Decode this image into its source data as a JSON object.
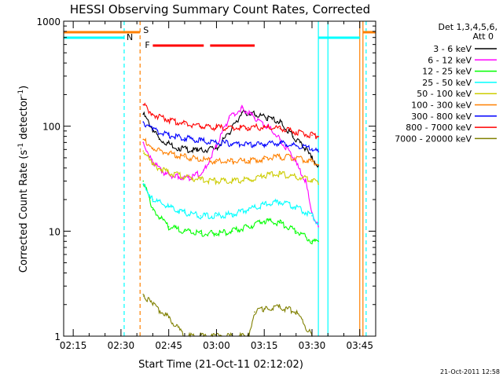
{
  "chart_data": {
    "type": "line",
    "title": "HESSI Observing Summary Count Rates, Corrected",
    "xlabel": "Start Time (21-Oct-11 02:12:02)",
    "ylabel": "Corrected Count Rate (s",
    "ylabel_sup1": "-1",
    "ylabel_mid": " detector",
    "ylabel_sup2": "-1",
    "ylabel_end": ")",
    "y_scale": "log",
    "ylim": [
      1,
      1000
    ],
    "xlim": [
      "02:12",
      "03:50"
    ],
    "x_ticks": [
      "02:15",
      "02:30",
      "02:45",
      "03:00",
      "03:15",
      "03:30",
      "03:45"
    ],
    "y_ticks": [
      {
        "value": 1,
        "label": "1"
      },
      {
        "value": 10,
        "label": "10"
      },
      {
        "value": 100,
        "label": "100"
      },
      {
        "value": 1000,
        "label": "1000"
      }
    ],
    "legend": {
      "title_line1": "Det 1,3,4,5,6,",
      "title_line2": "Att 0",
      "placement": "right"
    },
    "series": [
      {
        "name": "3 - 6 keV",
        "color": "#000000",
        "x": [
          "02:37",
          "02:42",
          "02:48",
          "02:54",
          "03:00",
          "03:04",
          "03:08",
          "03:12",
          "03:16",
          "03:20",
          "03:24",
          "03:28",
          "03:30",
          "03:32"
        ],
        "values": [
          130,
          75,
          62,
          58,
          62,
          85,
          135,
          130,
          120,
          110,
          80,
          60,
          50,
          42
        ]
      },
      {
        "name": "6 - 12 keV",
        "color": "#ff00ff",
        "x": [
          "02:37",
          "02:40",
          "02:44",
          "02:48",
          "02:52",
          "02:56",
          "03:00",
          "03:04",
          "03:08",
          "03:12",
          "03:16",
          "03:20",
          "03:24",
          "03:28",
          "03:30",
          "03:32"
        ],
        "values": [
          70,
          45,
          35,
          33,
          32,
          38,
          65,
          120,
          150,
          120,
          100,
          75,
          50,
          30,
          15,
          11
        ]
      },
      {
        "name": "12 - 25 keV",
        "color": "#00ff00",
        "x": [
          "02:37",
          "02:40",
          "02:45",
          "02:50",
          "02:55",
          "03:00",
          "03:05",
          "03:10",
          "03:15",
          "03:20",
          "03:25",
          "03:30",
          "03:32"
        ],
        "values": [
          30,
          16,
          11,
          10,
          9.5,
          9.5,
          10,
          11,
          12.5,
          12,
          10,
          8,
          8
        ]
      },
      {
        "name": "25 - 50 keV",
        "color": "#00ffff",
        "x": [
          "02:37",
          "02:40",
          "02:45",
          "02:50",
          "02:55",
          "03:00",
          "03:05",
          "03:10",
          "03:15",
          "03:20",
          "03:25",
          "03:30",
          "03:32"
        ],
        "values": [
          28,
          20,
          17,
          15,
          14,
          14,
          14.5,
          16,
          18,
          19,
          17,
          14,
          12
        ]
      },
      {
        "name": "50 - 100 keV",
        "color": "#cccc00",
        "x": [
          "02:37",
          "02:40",
          "02:45",
          "02:50",
          "02:55",
          "03:00",
          "03:05",
          "03:10",
          "03:15",
          "03:20",
          "03:25",
          "03:30",
          "03:32"
        ],
        "values": [
          58,
          43,
          36,
          33,
          31,
          30,
          30,
          31,
          34,
          35,
          33,
          31,
          28
        ]
      },
      {
        "name": "100 - 300 keV",
        "color": "#ff8000",
        "x": [
          "02:37",
          "02:40",
          "02:45",
          "02:50",
          "02:55",
          "03:00",
          "03:05",
          "03:10",
          "03:15",
          "03:20",
          "03:25",
          "03:30",
          "03:32"
        ],
        "values": [
          75,
          62,
          55,
          51,
          48,
          46,
          46,
          47,
          49,
          51,
          50,
          46,
          43
        ]
      },
      {
        "name": "300 - 800 keV",
        "color": "#0000ff",
        "x": [
          "02:37",
          "02:40",
          "02:45",
          "02:50",
          "02:55",
          "03:00",
          "03:05",
          "03:10",
          "03:15",
          "03:20",
          "03:25",
          "03:30",
          "03:32"
        ],
        "values": [
          110,
          92,
          82,
          77,
          73,
          70,
          68,
          67,
          67,
          69,
          65,
          61,
          57
        ]
      },
      {
        "name": "800 - 7000 keV",
        "color": "#ff0000",
        "x": [
          "02:37",
          "02:40",
          "02:45",
          "02:50",
          "02:55",
          "03:00",
          "03:05",
          "03:10",
          "03:15",
          "03:20",
          "03:25",
          "03:30",
          "03:32"
        ],
        "values": [
          160,
          130,
          115,
          105,
          100,
          97,
          96,
          97,
          98,
          95,
          88,
          82,
          80
        ]
      },
      {
        "name": "7000 - 20000 keV",
        "color": "#808000",
        "x": [
          "02:37",
          "02:40",
          "02:45",
          "02:50",
          "03:00",
          "03:10",
          "03:12",
          "03:15",
          "03:20",
          "03:25",
          "03:30"
        ],
        "values": [
          2.5,
          2,
          1.5,
          1,
          1,
          1,
          1.7,
          1.8,
          1.9,
          1.7,
          1
        ]
      }
    ],
    "annotations": {
      "saa_label": "S",
      "night_label": "N",
      "flare_label": "F",
      "saa_color": "#ff8000",
      "night_color": "#00ffff",
      "flare_color": "#ff0000",
      "saa_bars": [
        [
          "02:12",
          "02:36"
        ],
        [
          "03:46",
          "03:50"
        ]
      ],
      "night_bars": [
        [
          "02:12",
          "02:31"
        ],
        [
          "03:32",
          "03:45"
        ]
      ],
      "flare_bars": [
        [
          "02:40",
          "02:56"
        ],
        [
          "02:58",
          "03:12"
        ]
      ],
      "vlines": [
        {
          "t": "02:31",
          "color": "#00ffff",
          "dash": true
        },
        {
          "t": "02:36",
          "color": "#ff8000",
          "dash": true
        },
        {
          "t": "03:32",
          "color": "#00ffff",
          "dash": false
        },
        {
          "t": "03:35",
          "color": "#00ffff",
          "dash": false
        },
        {
          "t": "03:45",
          "color": "#ff8000",
          "dash": false
        },
        {
          "t": "03:46",
          "color": "#ff8000",
          "dash": false
        },
        {
          "t": "03:47",
          "color": "#00ffff",
          "dash": true
        }
      ]
    },
    "footer_date": "21-Oct-2011 12:58"
  }
}
